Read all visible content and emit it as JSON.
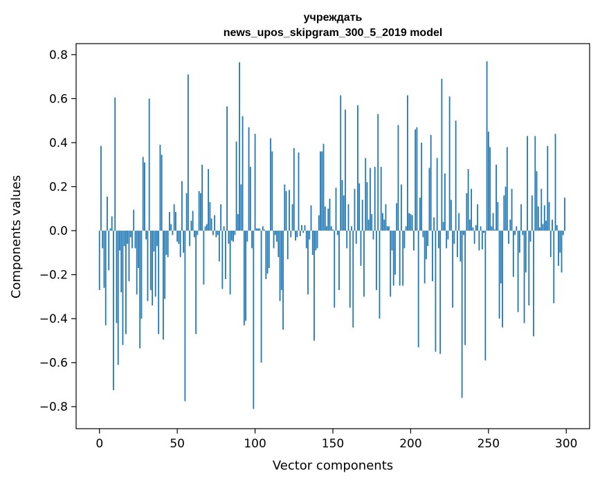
{
  "chart_data": {
    "type": "bar",
    "title_line1": "учреждать",
    "title_line2": "news_upos_skipgram_300_5_2019 model",
    "xlabel": "Vector components",
    "ylabel": "Components values",
    "xlim": [
      -15,
      315
    ],
    "ylim": [
      -0.9,
      0.85
    ],
    "xticks": [
      0,
      50,
      100,
      150,
      200,
      250,
      300
    ],
    "xtick_labels": [
      "0",
      "50",
      "100",
      "150",
      "200",
      "250",
      "300"
    ],
    "yticks": [
      -0.8,
      -0.6,
      -0.4,
      -0.2,
      0.0,
      0.2,
      0.4,
      0.6,
      0.8
    ],
    "ytick_labels": [
      "−0.8",
      "−0.6",
      "−0.4",
      "−0.2",
      "0.0",
      "0.2",
      "0.4",
      "0.6",
      "0.8"
    ],
    "bar_color": "#1f77b4",
    "grid": false,
    "legend": "none",
    "values": [
      -0.27,
      0.385,
      -0.08,
      -0.26,
      -0.43,
      0.155,
      -0.18,
      0.01,
      0.065,
      -0.725,
      0.605,
      -0.42,
      -0.61,
      -0.09,
      -0.28,
      -0.52,
      -0.07,
      -0.47,
      -0.06,
      -0.23,
      -0.03,
      -0.08,
      0.095,
      -0.08,
      -0.29,
      -0.17,
      -0.535,
      -0.4,
      0.335,
      0.31,
      -0.04,
      -0.32,
      0.6,
      -0.27,
      -0.34,
      -0.095,
      -0.3,
      -0.07,
      -0.47,
      0.39,
      0.345,
      -0.495,
      -0.31,
      -0.11,
      -0.12,
      0.085,
      0.03,
      -0.02,
      0.12,
      0.085,
      -0.05,
      -0.06,
      -0.12,
      0.225,
      -0.1,
      -0.775,
      0.17,
      0.71,
      -0.07,
      0.045,
      0.09,
      -0.03,
      -0.47,
      -0.02,
      0.18,
      0.17,
      0.3,
      -0.245,
      0.02,
      0.03,
      0.28,
      0.13,
      0.055,
      -0.02,
      0.07,
      -0.03,
      -0.02,
      -0.14,
      0.12,
      -0.265,
      0.02,
      -0.22,
      0.565,
      -0.06,
      -0.29,
      -0.045,
      -0.05,
      -0.02,
      0.405,
      0.075,
      0.765,
      0.21,
      0.52,
      -0.43,
      -0.41,
      -0.05,
      0.47,
      0.29,
      -0.08,
      -0.81,
      0.44,
      0.01,
      0.01,
      0.01,
      -0.6,
      0.02,
      0.005,
      -0.22,
      -0.195,
      -0.17,
      0.42,
      0.36,
      -0.08,
      -0.02,
      -0.05,
      -0.12,
      -0.32,
      -0.27,
      -0.45,
      0.21,
      0.18,
      -0.13,
      0.185,
      -0.03,
      0.12,
      0.375,
      -0.045,
      -0.03,
      0.355,
      -0.025,
      0.025,
      -0.01,
      0.025,
      -0.08,
      -0.29,
      -0.04,
      0.115,
      -0.11,
      -0.5,
      -0.09,
      -0.08,
      0.07,
      0.36,
      0.36,
      0.395,
      0.11,
      0.02,
      0.1,
      0.145,
      0.02,
      0.005,
      -0.35,
      0.195,
      -0.02,
      -0.27,
      0.615,
      0.23,
      0.16,
      0.55,
      -0.08,
      0.12,
      -0.35,
      0.02,
      -0.44,
      0.19,
      -0.06,
      0.57,
      0.215,
      -0.16,
      0.14,
      -0.3,
      0.33,
      0.22,
      0.05,
      0.285,
      0.075,
      -0.04,
      0.29,
      -0.27,
      0.53,
      -0.4,
      0.29,
      0.08,
      0.05,
      0.12,
      0.02,
      0.02,
      -0.3,
      -0.09,
      -0.25,
      -0.2,
      0.125,
      0.48,
      -0.25,
      0.21,
      -0.25,
      -0.08,
      0.02,
      0.615,
      0.08,
      0.075,
      0.07,
      -0.09,
      0.46,
      0.47,
      -0.53,
      0.15,
      0.4,
      -0.03,
      -0.24,
      -0.13,
      -0.07,
      0.285,
      0.435,
      -0.23,
      0.06,
      -0.55,
      0.33,
      -0.08,
      -0.56,
      0.69,
      0.04,
      0.26,
      -0.08,
      -0.04,
      0.61,
      0.14,
      -0.35,
      -0.06,
      0.5,
      -0.12,
      0.08,
      -0.14,
      -0.76,
      -0.02,
      -0.52,
      0.17,
      0.28,
      0.05,
      0.19,
      0.015,
      -0.06,
      0.025,
      0.12,
      -0.09,
      0.02,
      -0.085,
      -0.01,
      -0.59,
      0.77,
      0.45,
      0.38,
      0.02,
      0.08,
      0.005,
      0.3,
      0.13,
      -0.4,
      -0.24,
      -0.44,
      0.16,
      0.2,
      0.38,
      -0.06,
      0.05,
      0.19,
      -0.21,
      -0.02,
      0.02,
      -0.37,
      -0.1,
      0.12,
      -0.02,
      -0.42,
      -0.19,
      0.43,
      -0.34,
      -0.05,
      0.16,
      -0.48,
      0.43,
      0.27,
      0.11,
      0.015,
      0.19,
      0.03,
      0.115,
      0.045,
      0.385,
      0.13,
      -0.12,
      0.05,
      -0.33,
      0.44,
      0.025,
      -0.16,
      -0.1,
      -0.19,
      -0.02,
      0.15
    ]
  }
}
